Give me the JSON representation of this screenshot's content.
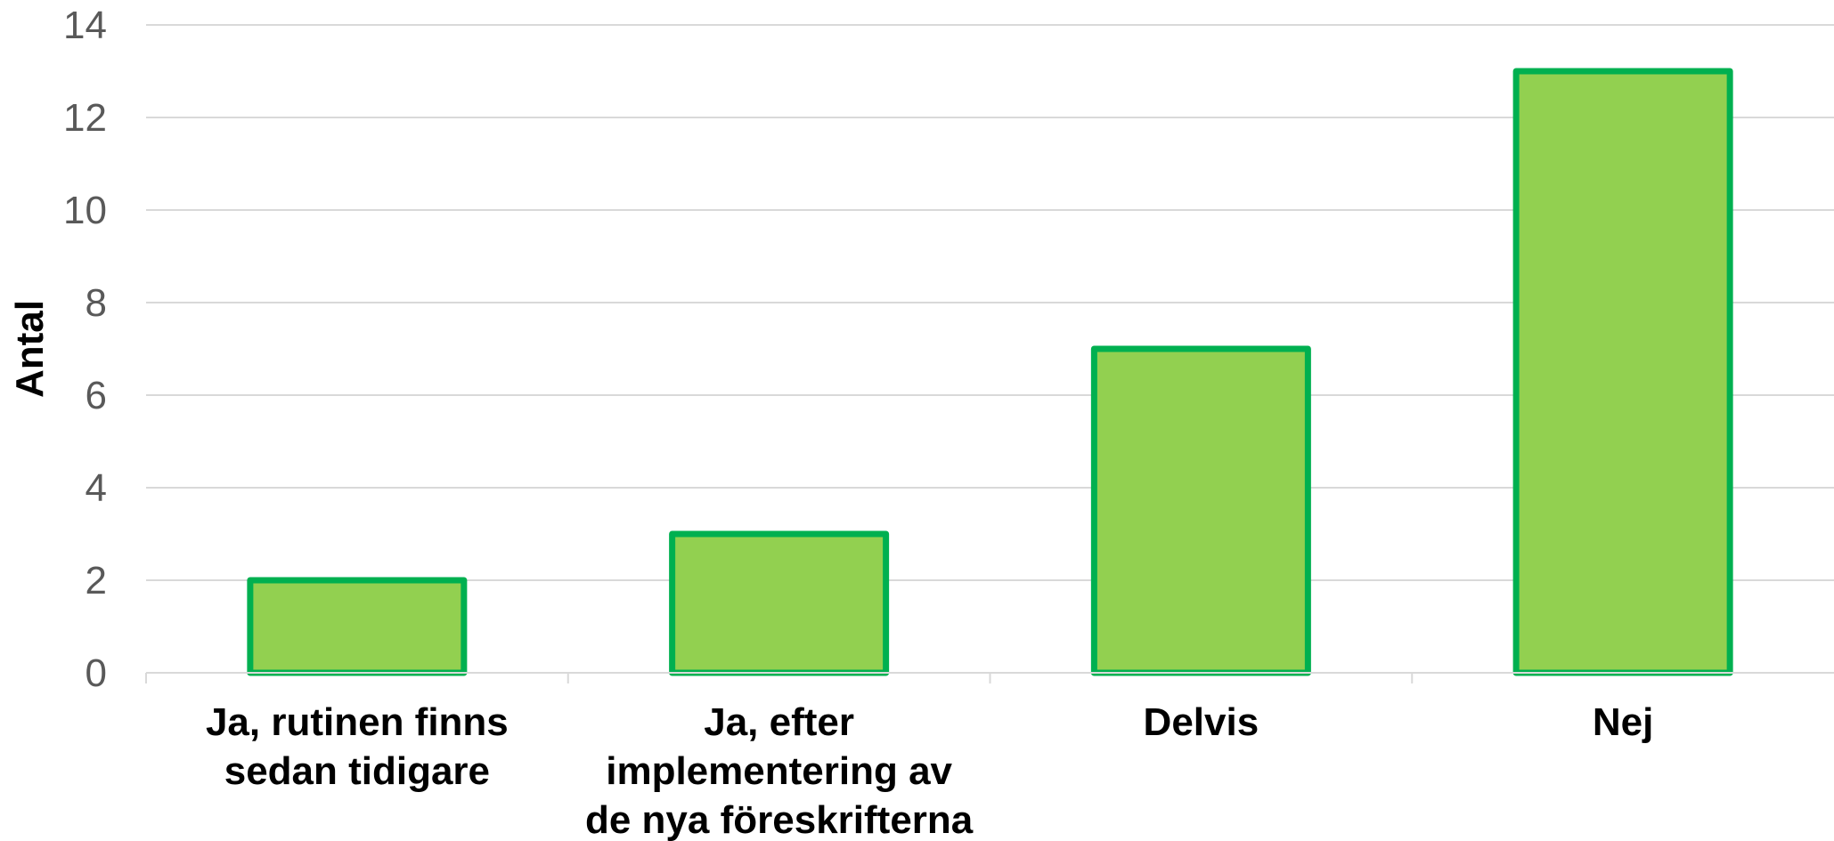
{
  "chart_data": {
    "type": "bar",
    "title": "",
    "xlabel": "",
    "ylabel": "Antal",
    "ylim": [
      0,
      14
    ],
    "yticks": [
      0,
      2,
      4,
      6,
      8,
      10,
      12,
      14
    ],
    "grid": true,
    "legend": "none",
    "categories": [
      [
        "Ja, rutinen finns",
        "sedan tidigare"
      ],
      [
        "Ja, efter",
        "implementering av",
        "de nya föreskrifterna"
      ],
      [
        "Delvis"
      ],
      [
        "Nej"
      ]
    ],
    "series": [
      {
        "values": [
          2,
          3,
          7,
          13
        ],
        "fill": "#92D050",
        "stroke": "#00B050"
      }
    ],
    "colors": {
      "grid": "#D9D9D9",
      "axis": "#D9D9D9",
      "tick_text": "#595959"
    }
  }
}
